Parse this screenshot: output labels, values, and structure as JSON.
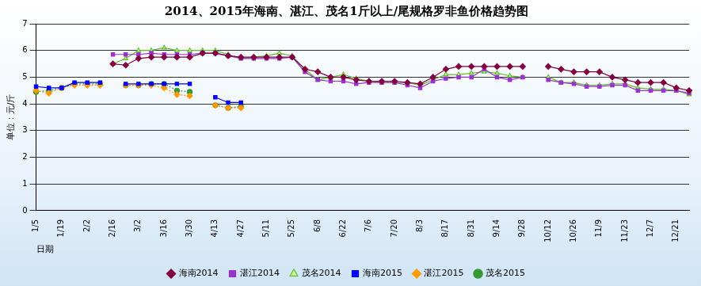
{
  "chart_data": {
    "type": "line",
    "title": "2014、2015年海南、湛江、茂名1斤以上/尾规格罗非鱼价格趋势图",
    "y_label": "单位：元/斤",
    "x_label": "日期",
    "categories": [
      "1/5",
      null,
      "1/19",
      null,
      "2/2",
      null,
      "2/16",
      null,
      "3/2",
      null,
      "3/16",
      null,
      "3/30",
      null,
      "4/13",
      null,
      "4/27",
      null,
      "5/11",
      null,
      "5/25",
      null,
      "6/8",
      null,
      "6/22",
      null,
      "7/6",
      null,
      "7/20",
      null,
      "8/3",
      null,
      "8/17",
      null,
      "8/31",
      null,
      "9/14",
      null,
      "9/28",
      null,
      "10/12",
      null,
      "10/26",
      null,
      "11/9",
      null,
      "11/23",
      null,
      "12/7",
      null,
      "12/21",
      null
    ],
    "series": [
      {
        "name": "海南2014",
        "color": "#800040",
        "marker": "diamond",
        "line_style": "solid",
        "values": [
          null,
          null,
          null,
          null,
          null,
          null,
          5.5,
          5.45,
          5.7,
          5.75,
          5.75,
          5.75,
          5.75,
          5.9,
          5.9,
          5.8,
          5.75,
          5.75,
          5.75,
          5.75,
          5.75,
          5.3,
          5.2,
          5.0,
          5.0,
          4.9,
          4.85,
          4.85,
          4.85,
          4.8,
          4.75,
          5.0,
          5.3,
          5.4,
          5.4,
          5.4,
          5.4,
          5.4,
          5.4,
          null,
          5.4,
          5.3,
          5.2,
          5.2,
          5.2,
          5.0,
          4.9,
          4.8,
          4.8,
          4.8,
          4.6,
          4.5
        ]
      },
      {
        "name": "湛江2014",
        "color": "#9933cc",
        "marker": "square",
        "line_style": "solid",
        "values": [
          null,
          null,
          null,
          null,
          null,
          null,
          5.85,
          5.85,
          5.85,
          5.9,
          5.85,
          5.85,
          5.85,
          5.9,
          5.9,
          5.8,
          5.7,
          5.7,
          5.7,
          5.7,
          5.75,
          5.2,
          4.9,
          4.85,
          4.85,
          4.75,
          4.8,
          4.8,
          4.8,
          4.7,
          4.6,
          4.85,
          4.95,
          5.0,
          5.0,
          5.3,
          5.0,
          4.9,
          5.0,
          null,
          4.9,
          4.8,
          4.75,
          4.65,
          4.65,
          4.7,
          4.7,
          4.5,
          4.5,
          4.5,
          4.5,
          4.4
        ]
      },
      {
        "name": "茂名2014",
        "color": "#66bb33",
        "marker": "triangle",
        "line_style": "solid",
        "values": [
          null,
          null,
          null,
          null,
          null,
          null,
          5.5,
          5.7,
          6.0,
          6.0,
          6.1,
          6.0,
          6.0,
          6.0,
          6.0,
          5.85,
          5.7,
          5.75,
          5.8,
          5.9,
          5.8,
          5.3,
          4.9,
          5.0,
          5.1,
          4.95,
          4.85,
          4.8,
          4.8,
          4.8,
          4.7,
          4.9,
          5.1,
          5.1,
          5.15,
          5.2,
          5.15,
          5.05,
          5.0,
          null,
          5.0,
          4.8,
          4.8,
          4.7,
          4.7,
          4.75,
          4.75,
          4.6,
          4.55,
          4.55,
          4.5,
          4.35
        ]
      },
      {
        "name": "海南2015",
        "color": "#0000ff",
        "marker": "square",
        "line_style": "solid",
        "values": [
          4.65,
          4.6,
          4.6,
          4.8,
          4.8,
          4.8,
          null,
          4.75,
          4.75,
          4.75,
          4.75,
          4.75,
          4.75,
          null,
          4.25,
          4.05,
          4.05,
          null,
          null,
          null,
          null,
          null,
          null,
          null,
          null,
          null,
          null,
          null,
          null,
          null,
          null,
          null,
          null,
          null,
          null,
          null,
          null,
          null,
          null,
          null,
          null,
          null,
          null,
          null,
          null,
          null,
          null,
          null,
          null,
          null,
          null,
          null
        ]
      },
      {
        "name": "湛江2015",
        "color": "#ff9900",
        "marker": "diamond",
        "line_style": "dotted",
        "values": [
          4.5,
          4.4,
          4.6,
          4.7,
          4.7,
          4.7,
          null,
          4.7,
          4.7,
          4.7,
          4.6,
          4.35,
          4.3,
          null,
          3.95,
          3.85,
          3.85,
          null,
          null,
          null,
          null,
          null,
          null,
          null,
          null,
          null,
          null,
          null,
          null,
          null,
          null,
          null,
          null,
          null,
          null,
          null,
          null,
          null,
          null,
          null,
          null,
          null,
          null,
          null,
          null,
          null,
          null,
          null,
          null,
          null,
          null,
          null
        ]
      },
      {
        "name": "茂名2015",
        "color": "#339933",
        "marker": "circle",
        "line_style": "dotted",
        "values": [
          4.45,
          4.5,
          4.6,
          4.75,
          4.75,
          4.75,
          null,
          4.7,
          4.7,
          4.75,
          4.75,
          4.5,
          4.45,
          null,
          3.95,
          3.85,
          3.9,
          null,
          null,
          null,
          null,
          null,
          null,
          null,
          null,
          null,
          null,
          null,
          null,
          null,
          null,
          null,
          null,
          null,
          null,
          null,
          null,
          null,
          null,
          null,
          null,
          null,
          null,
          null,
          null,
          null,
          null,
          null,
          null,
          null,
          null,
          null
        ]
      }
    ],
    "ylim": [
      0,
      7
    ],
    "yticks": [
      0,
      1,
      2,
      3,
      4,
      5,
      6,
      7
    ],
    "grid": true,
    "legend": "bottom"
  }
}
